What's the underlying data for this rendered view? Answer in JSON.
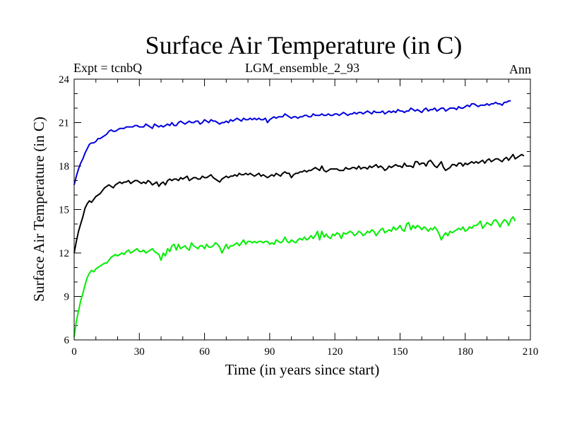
{
  "chart_data": {
    "type": "line",
    "title": "Surface Air Temperature (in C)",
    "subtitle_left": "Expt = tcnbQ",
    "subtitle_center": "LGM_ensemble_2_93",
    "subtitle_right": "Ann",
    "xlabel": "Time (in years since start)",
    "ylabel": "Surface Air Temperature (in C)",
    "xlim": [
      0,
      210
    ],
    "ylim": [
      6,
      24
    ],
    "xticks": [
      0,
      30,
      60,
      90,
      120,
      150,
      180,
      210
    ],
    "yticks": [
      6,
      9,
      12,
      15,
      18,
      21,
      24
    ],
    "x_minor_step": 10,
    "y_minor_step": 1,
    "x_start": 0,
    "x_step": 1,
    "series": [
      {
        "name": "blue",
        "color": "#0000dd",
        "values": [
          16.7,
          17.3,
          17.8,
          18.2,
          18.5,
          18.9,
          19.2,
          19.5,
          19.6,
          19.6,
          19.7,
          19.9,
          19.9,
          20.0,
          20.1,
          20.2,
          20.4,
          20.5,
          20.4,
          20.4,
          20.5,
          20.6,
          20.6,
          20.6,
          20.7,
          20.7,
          20.7,
          20.7,
          20.8,
          20.8,
          20.7,
          20.7,
          20.7,
          20.9,
          20.8,
          20.7,
          20.6,
          20.9,
          20.8,
          20.7,
          20.8,
          20.7,
          20.8,
          20.9,
          20.8,
          21.0,
          20.8,
          20.8,
          21.0,
          21.1,
          21.0,
          20.9,
          21.0,
          21.1,
          21.0,
          21.0,
          21.1,
          21.1,
          20.9,
          21.0,
          21.2,
          21.1,
          21.0,
          21.2,
          21.1,
          21.1,
          21.0,
          20.9,
          21.0,
          21.0,
          21.1,
          21.0,
          21.2,
          21.1,
          21.2,
          21.3,
          21.2,
          21.1,
          21.3,
          21.2,
          21.2,
          21.3,
          21.2,
          21.3,
          21.2,
          21.3,
          21.2,
          21.2,
          21.3,
          21.0,
          21.2,
          21.3,
          21.4,
          21.3,
          21.4,
          21.4,
          21.4,
          21.6,
          21.5,
          21.4,
          21.3,
          21.4,
          21.4,
          21.3,
          21.4,
          21.4,
          21.5,
          21.5,
          21.4,
          21.4,
          21.6,
          21.5,
          21.5,
          21.5,
          21.6,
          21.5,
          21.5,
          21.6,
          21.5,
          21.5,
          21.6,
          21.6,
          21.5,
          21.6,
          21.7,
          21.6,
          21.5,
          21.6,
          21.6,
          21.7,
          21.6,
          21.7,
          21.7,
          21.6,
          21.7,
          21.8,
          21.7,
          21.6,
          21.8,
          21.7,
          21.7,
          21.7,
          21.8,
          21.6,
          21.7,
          21.8,
          21.7,
          21.8,
          21.7,
          21.9,
          21.8,
          21.8,
          21.7,
          21.8,
          21.8,
          22.0,
          21.9,
          21.8,
          21.9,
          21.8,
          21.7,
          21.9,
          22.0,
          21.8,
          21.9,
          21.9,
          22.0,
          21.8,
          21.9,
          22.0,
          22.0,
          21.8,
          21.9,
          22.0,
          22.0,
          22.0,
          21.9,
          22.1,
          22.0,
          22.0,
          22.1,
          22.2,
          22.1,
          22.3,
          22.3,
          22.2,
          22.1,
          22.2,
          22.2,
          22.2,
          22.3,
          22.2,
          22.3,
          22.3,
          22.4,
          22.3,
          22.3,
          22.2,
          22.4,
          22.4,
          22.5,
          22.5
        ]
      },
      {
        "name": "black",
        "color": "#000000",
        "values": [
          12.0,
          12.8,
          13.5,
          14.0,
          14.5,
          15.1,
          15.4,
          15.6,
          15.5,
          15.7,
          15.9,
          16.0,
          16.1,
          16.3,
          16.5,
          16.6,
          16.7,
          16.6,
          16.5,
          16.7,
          16.8,
          16.9,
          16.8,
          16.9,
          16.9,
          17.0,
          16.8,
          16.9,
          17.0,
          17.0,
          16.9,
          16.8,
          16.9,
          16.8,
          17.0,
          16.9,
          16.7,
          16.8,
          16.9,
          16.6,
          16.8,
          16.9,
          16.7,
          17.0,
          17.1,
          17.0,
          17.1,
          17.1,
          17.0,
          17.2,
          17.1,
          17.2,
          17.3,
          17.0,
          17.1,
          17.2,
          17.2,
          17.1,
          17.1,
          17.3,
          17.2,
          17.2,
          17.3,
          17.4,
          17.2,
          17.1,
          17.0,
          16.9,
          17.1,
          17.2,
          17.3,
          17.2,
          17.3,
          17.3,
          17.4,
          17.3,
          17.5,
          17.4,
          17.4,
          17.5,
          17.4,
          17.5,
          17.4,
          17.3,
          17.4,
          17.5,
          17.3,
          17.4,
          17.3,
          17.2,
          17.3,
          17.4,
          17.3,
          17.5,
          17.4,
          17.3,
          17.5,
          17.6,
          17.5,
          17.5,
          17.2,
          17.4,
          17.5,
          17.5,
          17.6,
          17.6,
          17.7,
          17.6,
          17.7,
          17.7,
          17.8,
          17.9,
          17.8,
          17.7,
          18.0,
          17.7,
          17.6,
          17.7,
          17.8,
          17.8,
          17.8,
          17.8,
          17.7,
          17.7,
          17.7,
          17.9,
          17.8,
          17.8,
          17.9,
          17.9,
          17.8,
          18.0,
          17.8,
          17.9,
          17.9,
          17.8,
          18.0,
          17.9,
          18.0,
          18.1,
          17.9,
          18.0,
          17.9,
          17.7,
          17.8,
          18.0,
          17.9,
          18.0,
          18.1,
          18.0,
          18.0,
          17.9,
          18.2,
          18.0,
          18.0,
          18.0,
          17.9,
          18.3,
          18.3,
          18.1,
          18.2,
          18.2,
          18.0,
          18.3,
          18.4,
          18.2,
          18.0,
          17.9,
          18.1,
          18.3,
          17.9,
          17.7,
          17.8,
          17.9,
          18.1,
          18.1,
          18.0,
          18.2,
          18.2,
          18.0,
          18.2,
          18.1,
          18.2,
          18.3,
          18.2,
          18.3,
          18.2,
          18.3,
          18.4,
          18.2,
          18.4,
          18.5,
          18.3,
          18.4,
          18.5,
          18.5,
          18.4,
          18.3,
          18.5,
          18.6,
          18.4,
          18.6,
          18.8,
          18.5,
          18.6,
          18.7,
          18.8,
          18.7
        ]
      },
      {
        "name": "green",
        "color": "#00ee00",
        "values": [
          6.2,
          7.3,
          8.0,
          8.7,
          9.2,
          9.8,
          10.3,
          10.6,
          10.8,
          10.7,
          10.9,
          11.0,
          11.1,
          11.2,
          11.3,
          11.3,
          11.5,
          11.7,
          11.8,
          11.9,
          11.8,
          11.9,
          12.0,
          11.9,
          12.1,
          12.2,
          12.0,
          12.1,
          12.2,
          12.3,
          12.1,
          12.1,
          12.2,
          12.0,
          12.1,
          12.2,
          12.3,
          12.1,
          12.0,
          11.9,
          11.5,
          12.0,
          11.8,
          12.3,
          12.1,
          12.5,
          12.6,
          12.2,
          12.6,
          12.3,
          12.4,
          12.5,
          12.3,
          12.2,
          12.7,
          12.5,
          12.4,
          12.3,
          12.5,
          12.5,
          12.3,
          12.6,
          12.4,
          12.4,
          12.5,
          12.7,
          12.6,
          12.4,
          12.0,
          12.3,
          12.6,
          12.3,
          12.5,
          12.5,
          12.6,
          12.7,
          12.5,
          12.7,
          12.9,
          12.6,
          12.8,
          12.8,
          12.7,
          12.8,
          12.7,
          12.8,
          12.8,
          12.7,
          12.8,
          12.8,
          12.6,
          12.7,
          12.6,
          12.9,
          12.8,
          12.7,
          12.8,
          13.1,
          12.8,
          12.7,
          12.9,
          12.8,
          12.7,
          12.9,
          13.0,
          12.9,
          13.1,
          12.9,
          13.0,
          13.2,
          13.0,
          13.2,
          13.5,
          12.9,
          13.5,
          13.1,
          13.3,
          13.1,
          13.0,
          13.3,
          13.2,
          13.4,
          13.3,
          13.0,
          13.4,
          13.3,
          13.4,
          13.5,
          13.4,
          13.2,
          13.3,
          13.5,
          13.4,
          13.2,
          13.3,
          13.5,
          13.4,
          13.6,
          13.5,
          13.2,
          13.4,
          13.6,
          13.7,
          13.4,
          13.5,
          13.6,
          13.5,
          13.8,
          13.6,
          13.7,
          13.9,
          13.6,
          13.5,
          14.0,
          14.1,
          13.6,
          13.9,
          13.7,
          13.9,
          13.8,
          13.6,
          13.8,
          13.7,
          13.5,
          13.7,
          13.6,
          13.8,
          13.6,
          13.3,
          12.9,
          13.2,
          13.4,
          13.2,
          13.5,
          13.4,
          13.5,
          13.6,
          13.7,
          13.6,
          13.8,
          13.5,
          13.6,
          13.8,
          13.7,
          13.9,
          13.9,
          14.0,
          14.2,
          13.7,
          13.9,
          14.1,
          14.0,
          13.9,
          14.2,
          14.3,
          14.1,
          13.8,
          14.1,
          14.3,
          14.2,
          13.9,
          14.3,
          14.5,
          14.2
        ]
      }
    ]
  }
}
